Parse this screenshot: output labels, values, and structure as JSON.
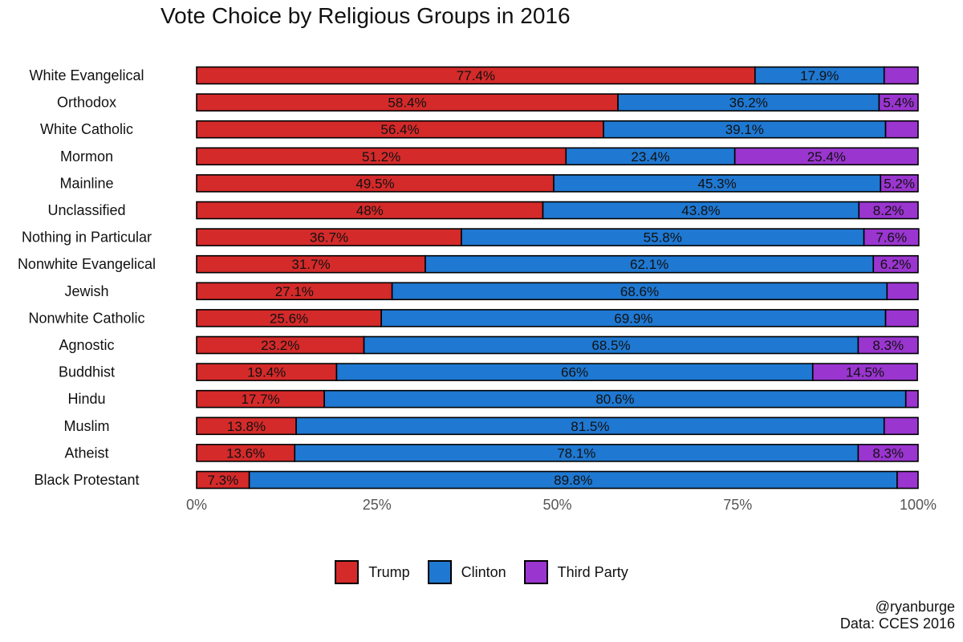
{
  "chart_data": {
    "type": "bar",
    "orientation": "horizontal",
    "stacked": true,
    "title": "Vote Choice by Religious Groups in 2016",
    "xlabel": "",
    "ylabel": "",
    "xlim": [
      0,
      100
    ],
    "x_ticks": [
      "0%",
      "25%",
      "50%",
      "75%",
      "100%"
    ],
    "grid": false,
    "legend_position": "bottom",
    "categories": [
      "White Evangelical",
      "Orthodox",
      "White Catholic",
      "Mormon",
      "Mainline",
      "Unclassified",
      "Nothing in Particular",
      "Nonwhite Evangelical",
      "Jewish",
      "Nonwhite Catholic",
      "Agnostic",
      "Buddhist",
      "Hindu",
      "Muslim",
      "Atheist",
      "Black Protestant"
    ],
    "series": [
      {
        "name": "Trump",
        "color": "#d42a2a",
        "values": [
          77.4,
          58.4,
          56.4,
          51.2,
          49.5,
          48,
          36.7,
          31.7,
          27.1,
          25.6,
          23.2,
          19.4,
          17.7,
          13.8,
          13.6,
          7.3
        ],
        "labels": [
          "77.4%",
          "58.4%",
          "56.4%",
          "51.2%",
          "49.5%",
          "48%",
          "36.7%",
          "31.7%",
          "27.1%",
          "25.6%",
          "23.2%",
          "19.4%",
          "17.7%",
          "13.8%",
          "13.6%",
          "7.3%"
        ]
      },
      {
        "name": "Clinton",
        "color": "#1f78d1",
        "values": [
          17.9,
          36.2,
          39.1,
          23.4,
          45.3,
          43.8,
          55.8,
          62.1,
          68.6,
          69.9,
          68.5,
          66,
          80.6,
          81.5,
          78.1,
          89.8
        ],
        "labels": [
          "17.9%",
          "36.2%",
          "39.1%",
          "23.4%",
          "45.3%",
          "43.8%",
          "55.8%",
          "62.1%",
          "68.6%",
          "69.9%",
          "68.5%",
          "66%",
          "80.6%",
          "81.5%",
          "78.1%",
          "89.8%"
        ]
      },
      {
        "name": "Third Party",
        "color": "#9a35cf",
        "values": [
          4.7,
          5.4,
          4.5,
          25.4,
          5.2,
          8.2,
          7.6,
          6.2,
          4.3,
          4.5,
          8.3,
          14.5,
          1.7,
          4.7,
          8.3,
          2.9
        ],
        "labels": [
          "",
          "5.4%",
          "",
          "25.4%",
          "5.2%",
          "8.2%",
          "7.6%",
          "6.2%",
          "",
          "",
          "8.3%",
          "14.5%",
          "",
          "",
          "8.3%",
          ""
        ]
      }
    ]
  },
  "legend": {
    "items": [
      {
        "label": "Trump",
        "color": "#d42a2a"
      },
      {
        "label": "Clinton",
        "color": "#1f78d1"
      },
      {
        "label": "Third Party",
        "color": "#9a35cf"
      }
    ]
  },
  "credits": {
    "author": "@ryanburge",
    "source": "Data: CCES 2016"
  }
}
